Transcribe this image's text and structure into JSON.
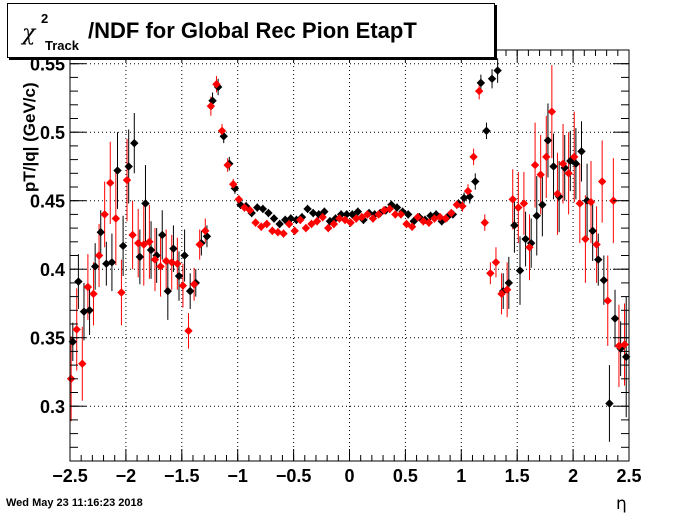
{
  "timestamp": "Wed May 23 11:16:23 2018",
  "chart_data": {
    "type": "scatter",
    "title": {
      "symbol": "χ",
      "superscript": "2",
      "subscript": "Track",
      "text": "/NDF for Global Rec Pion EtapT"
    },
    "xlabel": "η",
    "ylabel": "pT/|q| (GeV/c)",
    "xlim": [
      -2.5,
      2.5
    ],
    "ylim": [
      0.26,
      0.56
    ],
    "xticks": [
      -2.5,
      -2,
      -1.5,
      -1,
      -0.5,
      0,
      0.5,
      1,
      1.5,
      2,
      2.5
    ],
    "xtick_labels": [
      "−2.5",
      "−2",
      "−1.5",
      "−1",
      "−0.5",
      "0",
      "0.5",
      "1",
      "1.5",
      "2",
      "2.5"
    ],
    "yticks": [
      0.3,
      0.35,
      0.4,
      0.45,
      0.5,
      0.55
    ],
    "ytick_labels": [
      "0.3",
      "0.35",
      "0.4",
      "0.45",
      "0.5",
      "0.55"
    ],
    "grid": true,
    "colors": {
      "black_series": "#000000",
      "red_series": "#ff0000"
    },
    "series": [
      {
        "color": "#000000",
        "x": [
          -2.475,
          -2.425,
          -2.375,
          -2.325,
          -2.275,
          -2.225,
          -2.175,
          -2.125,
          -2.075,
          -2.025,
          -1.975,
          -1.925,
          -1.875,
          -1.825,
          -1.775,
          -1.725,
          -1.675,
          -1.625,
          -1.575,
          -1.525,
          -1.475,
          -1.425,
          -1.375,
          -1.325,
          -1.275,
          -1.225,
          -1.175,
          -1.125,
          -1.075,
          -1.025,
          -0.975,
          -0.925,
          -0.875,
          -0.825,
          -0.775,
          -0.725,
          -0.675,
          -0.625,
          -0.575,
          -0.525,
          -0.475,
          -0.425,
          -0.375,
          -0.325,
          -0.275,
          -0.225,
          -0.175,
          -0.125,
          -0.075,
          -0.025,
          0.025,
          0.075,
          0.125,
          0.175,
          0.225,
          0.275,
          0.325,
          0.375,
          0.425,
          0.475,
          0.525,
          0.575,
          0.625,
          0.675,
          0.725,
          0.775,
          0.825,
          0.875,
          0.925,
          0.975,
          1.025,
          1.075,
          1.125,
          1.175,
          1.225,
          1.275,
          1.325,
          1.375,
          1.425,
          1.475,
          1.525,
          1.575,
          1.625,
          1.675,
          1.725,
          1.775,
          1.825,
          1.875,
          1.925,
          1.975,
          2.025,
          2.075,
          2.125,
          2.175,
          2.225,
          2.275,
          2.325,
          2.375,
          2.425,
          2.475
        ],
        "y": [
          0.347,
          0.391,
          0.369,
          0.37,
          0.402,
          0.427,
          0.404,
          0.405,
          0.472,
          0.417,
          0.475,
          0.492,
          0.409,
          0.448,
          0.414,
          0.41,
          0.425,
          0.384,
          0.415,
          0.395,
          0.41,
          0.384,
          0.39,
          0.419,
          0.424,
          0.523,
          0.533,
          0.497,
          0.477,
          0.459,
          0.447,
          0.446,
          0.441,
          0.445,
          0.444,
          0.441,
          0.437,
          0.433,
          0.436,
          0.437,
          0.436,
          0.438,
          0.444,
          0.441,
          0.44,
          0.442,
          0.435,
          0.437,
          0.44,
          0.44,
          0.44,
          0.442,
          0.436,
          0.441,
          0.44,
          0.441,
          0.443,
          0.447,
          0.445,
          0.442,
          0.44,
          0.435,
          0.438,
          0.436,
          0.439,
          0.44,
          0.435,
          0.438,
          0.44,
          0.448,
          0.452,
          0.453,
          0.464,
          0.536,
          0.501,
          0.539,
          0.545,
          0.384,
          0.39,
          0.432,
          0.399,
          0.422,
          0.419,
          0.439,
          0.447,
          0.494,
          0.475,
          0.453,
          0.474,
          0.479,
          0.477,
          0.486,
          0.45,
          0.428,
          0.407,
          0.392,
          0.302,
          0.364,
          0.342,
          0.336
        ],
        "err": [
          0.014,
          0.02,
          0.021,
          0.018,
          0.017,
          0.016,
          0.016,
          0.021,
          0.028,
          0.022,
          0.027,
          0.022,
          0.02,
          0.028,
          0.021,
          0.02,
          0.018,
          0.021,
          0.017,
          0.018,
          0.019,
          0.013,
          0.01,
          0.009,
          0.008,
          0.006,
          0.006,
          0.005,
          0.005,
          0.004,
          0.003,
          0.003,
          0.003,
          0.003,
          0.003,
          0.003,
          0.003,
          0.003,
          0.003,
          0.003,
          0.003,
          0.003,
          0.003,
          0.003,
          0.003,
          0.003,
          0.003,
          0.003,
          0.003,
          0.003,
          0.003,
          0.003,
          0.003,
          0.003,
          0.003,
          0.003,
          0.003,
          0.003,
          0.003,
          0.003,
          0.003,
          0.003,
          0.003,
          0.003,
          0.003,
          0.003,
          0.003,
          0.003,
          0.003,
          0.003,
          0.004,
          0.005,
          0.006,
          0.006,
          0.006,
          0.007,
          0.009,
          0.013,
          0.019,
          0.02,
          0.025,
          0.02,
          0.018,
          0.029,
          0.023,
          0.027,
          0.024,
          0.026,
          0.024,
          0.022,
          0.026,
          0.022,
          0.027,
          0.022,
          0.019,
          0.018,
          0.028,
          0.021,
          0.02,
          0.044
        ]
      },
      {
        "color": "#ff0000",
        "x": [
          -2.49,
          -2.44,
          -2.39,
          -2.34,
          -2.29,
          -2.24,
          -2.19,
          -2.14,
          -2.09,
          -2.04,
          -1.99,
          -1.94,
          -1.89,
          -1.84,
          -1.79,
          -1.74,
          -1.69,
          -1.64,
          -1.59,
          -1.54,
          -1.49,
          -1.44,
          -1.39,
          -1.34,
          -1.29,
          -1.24,
          -1.19,
          -1.14,
          -1.09,
          -1.04,
          -0.99,
          -0.94,
          -0.89,
          -0.84,
          -0.79,
          -0.74,
          -0.69,
          -0.64,
          -0.59,
          -0.54,
          -0.49,
          -0.44,
          -0.39,
          -0.34,
          -0.29,
          -0.24,
          -0.19,
          -0.14,
          -0.09,
          -0.04,
          0.01,
          0.06,
          0.11,
          0.16,
          0.21,
          0.26,
          0.31,
          0.36,
          0.41,
          0.46,
          0.51,
          0.56,
          0.61,
          0.66,
          0.71,
          0.76,
          0.81,
          0.86,
          0.91,
          0.96,
          1.01,
          1.06,
          1.11,
          1.16,
          1.21,
          1.26,
          1.31,
          1.36,
          1.41,
          1.46,
          1.51,
          1.56,
          1.61,
          1.66,
          1.71,
          1.76,
          1.81,
          1.86,
          1.91,
          1.96,
          2.01,
          2.06,
          2.11,
          2.16,
          2.21,
          2.26,
          2.31,
          2.36,
          2.41,
          2.46
        ],
        "y": [
          0.32,
          0.356,
          0.331,
          0.387,
          0.382,
          0.41,
          0.44,
          0.463,
          0.437,
          0.383,
          0.465,
          0.425,
          0.419,
          0.418,
          0.42,
          0.407,
          0.402,
          0.406,
          0.405,
          0.404,
          0.388,
          0.355,
          0.389,
          0.418,
          0.428,
          0.519,
          0.535,
          0.501,
          0.476,
          0.462,
          0.451,
          0.445,
          0.443,
          0.434,
          0.431,
          0.433,
          0.428,
          0.427,
          0.426,
          0.433,
          0.428,
          0.436,
          0.43,
          0.433,
          0.435,
          0.438,
          0.43,
          0.433,
          0.437,
          0.436,
          0.434,
          0.437,
          0.438,
          0.44,
          0.437,
          0.44,
          0.443,
          0.444,
          0.44,
          0.44,
          0.433,
          0.431,
          0.438,
          0.435,
          0.434,
          0.437,
          0.438,
          0.437,
          0.441,
          0.447,
          0.446,
          0.457,
          0.482,
          0.53,
          0.434,
          0.397,
          0.405,
          0.382,
          0.385,
          0.451,
          0.445,
          0.448,
          0.416,
          0.476,
          0.469,
          0.482,
          0.515,
          0.455,
          0.477,
          0.47,
          0.482,
          0.448,
          0.422,
          0.449,
          0.418,
          0.464,
          0.377,
          0.45,
          0.344,
          0.345
        ],
        "err": [
          0.031,
          0.03,
          0.027,
          0.024,
          0.023,
          0.023,
          0.024,
          0.03,
          0.034,
          0.024,
          0.03,
          0.025,
          0.025,
          0.03,
          0.027,
          0.023,
          0.022,
          0.023,
          0.02,
          0.019,
          0.016,
          0.013,
          0.012,
          0.011,
          0.009,
          0.007,
          0.006,
          0.005,
          0.005,
          0.004,
          0.003,
          0.003,
          0.003,
          0.003,
          0.003,
          0.003,
          0.003,
          0.003,
          0.003,
          0.003,
          0.003,
          0.003,
          0.003,
          0.003,
          0.003,
          0.003,
          0.003,
          0.003,
          0.003,
          0.003,
          0.003,
          0.003,
          0.003,
          0.003,
          0.003,
          0.003,
          0.003,
          0.003,
          0.003,
          0.003,
          0.003,
          0.003,
          0.003,
          0.003,
          0.003,
          0.003,
          0.003,
          0.003,
          0.003,
          0.003,
          0.004,
          0.005,
          0.006,
          0.006,
          0.006,
          0.008,
          0.011,
          0.015,
          0.02,
          0.022,
          0.026,
          0.023,
          0.024,
          0.031,
          0.029,
          0.03,
          0.034,
          0.03,
          0.029,
          0.03,
          0.033,
          0.029,
          0.032,
          0.03,
          0.028,
          0.03,
          0.033,
          0.031,
          0.03,
          0.03
        ]
      }
    ]
  }
}
